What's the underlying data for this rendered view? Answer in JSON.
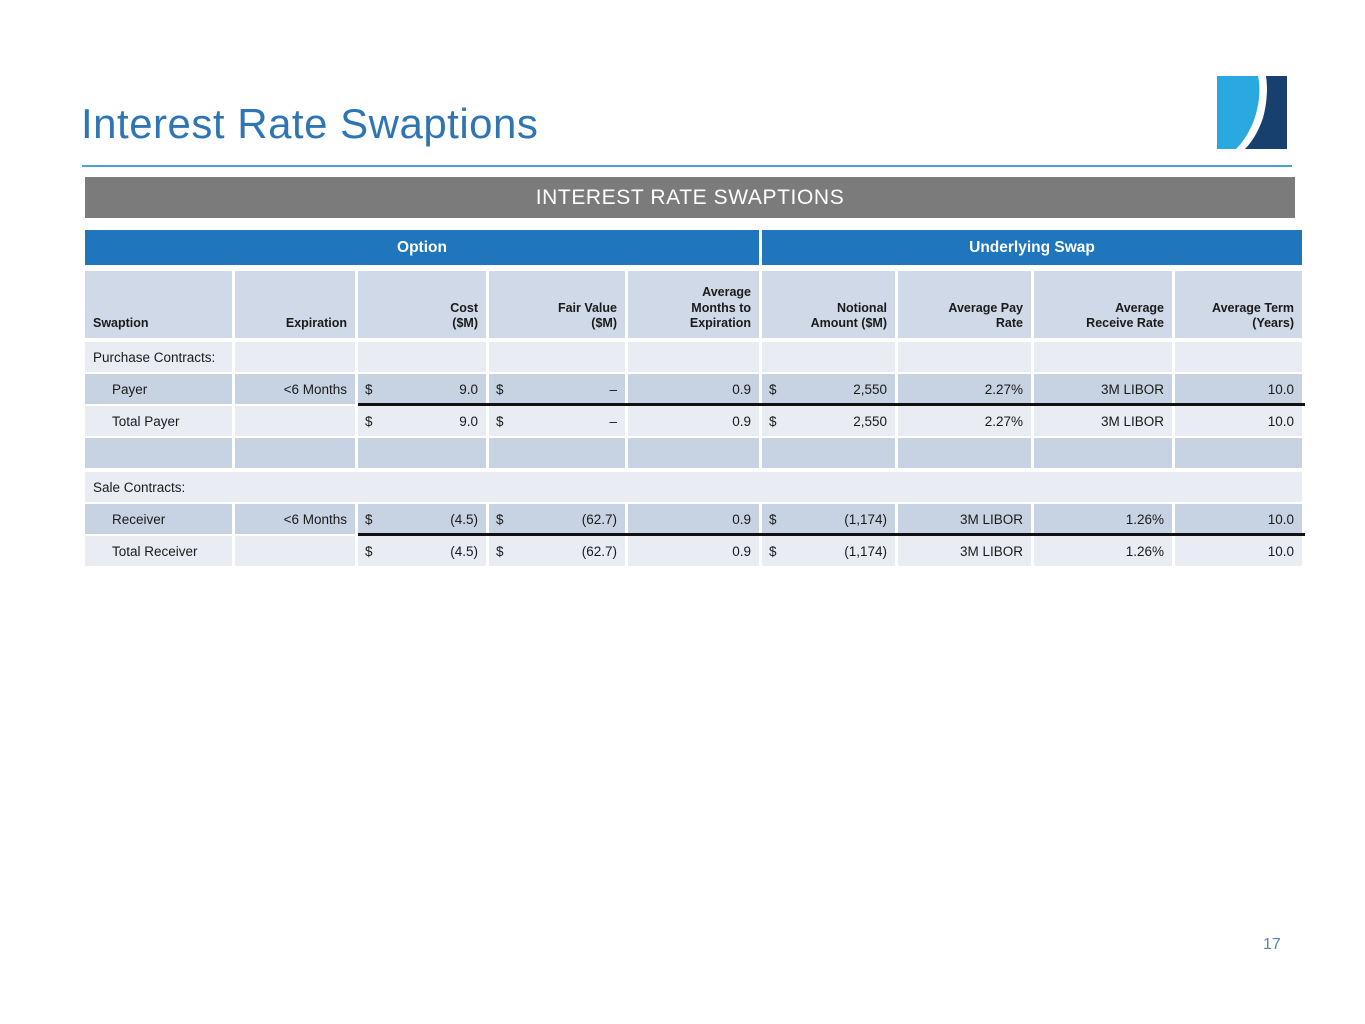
{
  "slide": {
    "title": "Interest Rate Swaptions",
    "page_number": "17",
    "colors": {
      "title_blue": "#2E75B6",
      "rule_blue": "#4DA0D2",
      "caption_gray": "#7B7B7B",
      "band_blue": "#2076BD",
      "header_cell": "#CFD9E7",
      "row_dark": "#C7D3E3",
      "row_light": "#E9ECF3",
      "logo_light_blue": "#29A9E0",
      "logo_navy": "#17406F"
    }
  },
  "table": {
    "caption": "INTEREST RATE SWAPTIONS",
    "band_option": "Option",
    "band_underlying": "Underlying Swap",
    "headers": [
      "Swaption",
      "Expiration",
      "Cost\n($M)",
      "Fair Value\n($M)",
      "Average\nMonths to\nExpiration",
      "Notional\nAmount ($M)",
      "Average Pay\nRate",
      "Average\nReceive Rate",
      "Average Term\n(Years)"
    ],
    "rows": [
      {
        "type": "section",
        "shade": "light",
        "merged": false,
        "label": "Purchase Contracts:",
        "name": "row-purchase-contracts"
      },
      {
        "type": "data",
        "shade": "dark",
        "underline": true,
        "name": "row-payer",
        "cells": [
          "Payer",
          "<6 Months",
          {
            "d": "$",
            "v": "9.0"
          },
          {
            "d": "$",
            "v": "–"
          },
          "0.9",
          {
            "d": "$",
            "v": "2,550"
          },
          "2.27%",
          "3M LIBOR",
          "10.0"
        ]
      },
      {
        "type": "data",
        "shade": "light",
        "name": "row-total-payer",
        "cells": [
          "Total Payer",
          "",
          {
            "d": "$",
            "v": "9.0"
          },
          {
            "d": "$",
            "v": "–"
          },
          "0.9",
          {
            "d": "$",
            "v": "2,550"
          },
          "2.27%",
          "3M LIBOR",
          "10.0"
        ]
      },
      {
        "type": "empty",
        "shade": "dark",
        "name": "row-spacer"
      },
      {
        "type": "section",
        "shade": "light",
        "merged": true,
        "gap_before": 4,
        "label": "Sale Contracts:",
        "name": "row-sale-contracts"
      },
      {
        "type": "data",
        "shade": "dark",
        "underline": true,
        "name": "row-receiver",
        "cells": [
          "Receiver",
          "<6 Months",
          {
            "d": "$",
            "v": "(4.5)"
          },
          {
            "d": "$",
            "v": "(62.7)"
          },
          "0.9",
          {
            "d": "$",
            "v": "(1,174)"
          },
          "3M LIBOR",
          "1.26%",
          "10.0"
        ]
      },
      {
        "type": "data",
        "shade": "light",
        "gap_before": 1,
        "name": "row-total-receiver",
        "cells": [
          "Total Receiver",
          "",
          {
            "d": "$",
            "v": "(4.5)"
          },
          {
            "d": "$",
            "v": "(62.7)"
          },
          "0.9",
          {
            "d": "$",
            "v": "(1,174)"
          },
          "3M LIBOR",
          "1.26%",
          "10.0"
        ]
      }
    ]
  }
}
